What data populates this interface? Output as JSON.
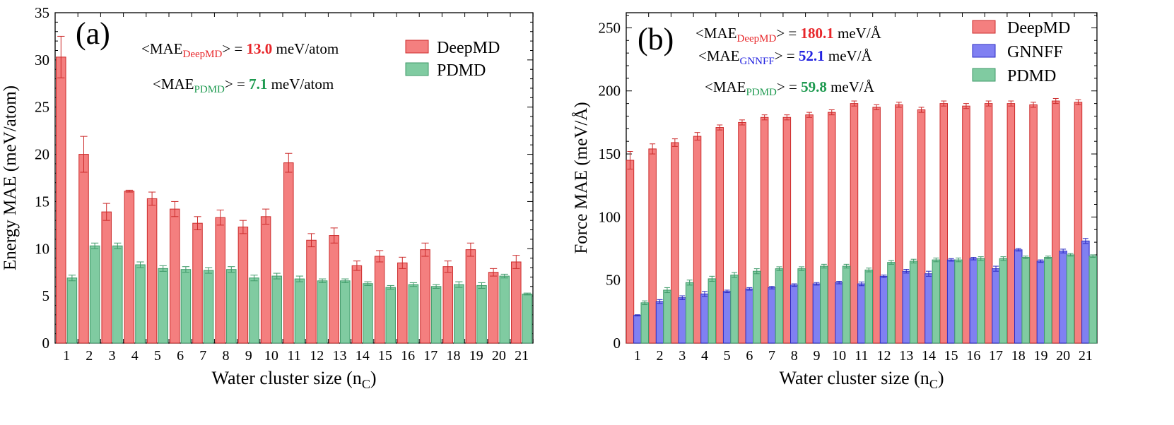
{
  "colors": {
    "deepmd_fill": "#f47f7f",
    "deepmd_stroke": "#cc2b2b",
    "pdmd_fill": "#80cba1",
    "pdmd_stroke": "#3f9a69",
    "gnnff_fill": "#8080f2",
    "gnnff_stroke": "#2b2bc4",
    "red_text": "#e8262a",
    "blue_text": "#2323e0",
    "green_text": "#1e9a50"
  },
  "chart_data": [
    {
      "type": "bar",
      "panel_label": "(a)",
      "xlabel": "Water cluster size (n",
      "xlabel_sub": "C",
      "xlabel_end": ")",
      "ylabel": "Energy MAE (meV/atom)",
      "ylim": [
        0,
        35
      ],
      "yticks": [
        "0",
        "5",
        "10",
        "15",
        "20",
        "25",
        "30",
        "35"
      ],
      "categories": [
        "1",
        "2",
        "3",
        "4",
        "5",
        "6",
        "7",
        "8",
        "9",
        "10",
        "11",
        "12",
        "13",
        "14",
        "15",
        "16",
        "17",
        "18",
        "19",
        "20",
        "21"
      ],
      "legend_position": "top-right",
      "series": [
        {
          "name": "DeepMD",
          "color_key": "deepmd",
          "values": [
            30.3,
            20.0,
            13.9,
            16.1,
            15.3,
            14.2,
            12.7,
            13.3,
            12.3,
            13.4,
            19.1,
            10.9,
            11.4,
            8.2,
            9.2,
            8.5,
            9.9,
            8.1,
            9.9,
            7.5,
            8.6
          ],
          "errors": [
            2.2,
            1.9,
            0.9,
            0.1,
            0.7,
            0.8,
            0.7,
            0.8,
            0.7,
            0.8,
            1.0,
            0.7,
            0.8,
            0.5,
            0.6,
            0.6,
            0.7,
            0.6,
            0.7,
            0.4,
            0.7
          ]
        },
        {
          "name": "PDMD",
          "color_key": "pdmd",
          "values": [
            6.9,
            10.3,
            10.3,
            8.3,
            7.9,
            7.8,
            7.7,
            7.8,
            6.9,
            7.1,
            6.8,
            6.6,
            6.6,
            6.3,
            5.9,
            6.2,
            6.0,
            6.2,
            6.1,
            7.1,
            5.2
          ],
          "errors": [
            0.3,
            0.3,
            0.3,
            0.3,
            0.3,
            0.3,
            0.3,
            0.3,
            0.3,
            0.3,
            0.3,
            0.2,
            0.2,
            0.2,
            0.2,
            0.2,
            0.2,
            0.3,
            0.3,
            0.2,
            0.1
          ]
        }
      ],
      "annotations": [
        {
          "prefix": "<MAE",
          "sub": "DeepMD",
          "mid": "> = ",
          "value": "13.0",
          "unit": " meV/atom",
          "color_key": "red_text"
        },
        {
          "prefix": "<MAE",
          "sub": "PDMD",
          "mid": "> = ",
          "value": "7.1",
          "unit": " meV/atom",
          "color_key": "green_text"
        }
      ]
    },
    {
      "type": "bar",
      "panel_label": "(b)",
      "xlabel": "Water cluster size (n",
      "xlabel_sub": "C",
      "xlabel_end": ")",
      "ylabel": "Force MAE (meV/Å)",
      "ylim": [
        0,
        262
      ],
      "yticks": [
        "0",
        "50",
        "100",
        "150",
        "200",
        "250"
      ],
      "ytick_values": [
        0,
        50,
        100,
        150,
        200,
        250
      ],
      "categories": [
        "1",
        "2",
        "3",
        "4",
        "5",
        "6",
        "7",
        "8",
        "9",
        "10",
        "11",
        "12",
        "13",
        "14",
        "15",
        "16",
        "17",
        "18",
        "19",
        "20",
        "21"
      ],
      "legend_position": "top-right",
      "series": [
        {
          "name": "DeepMD",
          "color_key": "deepmd",
          "values": [
            145,
            154,
            159,
            164,
            171,
            175,
            179,
            179,
            181,
            183,
            190,
            187,
            189,
            185,
            190,
            188,
            190,
            190,
            189,
            192,
            191
          ],
          "errors": [
            7,
            4,
            3,
            3,
            2,
            2,
            2,
            2,
            2,
            2,
            2,
            2,
            2,
            2,
            2,
            2,
            2,
            2,
            2,
            2,
            2
          ]
        },
        {
          "name": "GNNFF",
          "color_key": "gnnff",
          "values": [
            22,
            33,
            36,
            39,
            41,
            43,
            44,
            46,
            47,
            48,
            47,
            53,
            57,
            55,
            66,
            67,
            59,
            74,
            65,
            73,
            81
          ],
          "errors": [
            0.5,
            1.5,
            1.5,
            2,
            1,
            1,
            1,
            1,
            1,
            1,
            1.5,
            1,
            1.5,
            2,
            1,
            1,
            2,
            1,
            1,
            1.5,
            2
          ]
        },
        {
          "name": "PDMD",
          "color_key": "pdmd",
          "values": [
            32,
            42,
            48,
            51,
            54,
            57,
            59,
            59,
            61,
            61,
            58,
            64,
            65,
            66,
            66,
            67,
            67,
            68,
            68,
            70,
            69
          ],
          "errors": [
            1.5,
            2,
            2,
            2,
            2,
            2,
            1.5,
            1.5,
            1.5,
            1.5,
            1.5,
            1.5,
            1.5,
            1.5,
            1.5,
            1.5,
            1.5,
            1,
            1,
            1,
            1
          ]
        }
      ],
      "annotations": [
        {
          "prefix": "<MAE",
          "sub": "DeepMD",
          "mid": "> = ",
          "value": "180.1",
          "unit": " meV/Å",
          "color_key": "red_text"
        },
        {
          "prefix": "<MAE",
          "sub": "GNNFF",
          "mid": "> = ",
          "value": "52.1",
          "unit": " meV/Å",
          "color_key": "blue_text"
        },
        {
          "prefix": "<MAE",
          "sub": "PDMD",
          "mid": "> = ",
          "value": "59.8",
          "unit": " meV/Å",
          "color_key": "green_text"
        }
      ]
    }
  ]
}
